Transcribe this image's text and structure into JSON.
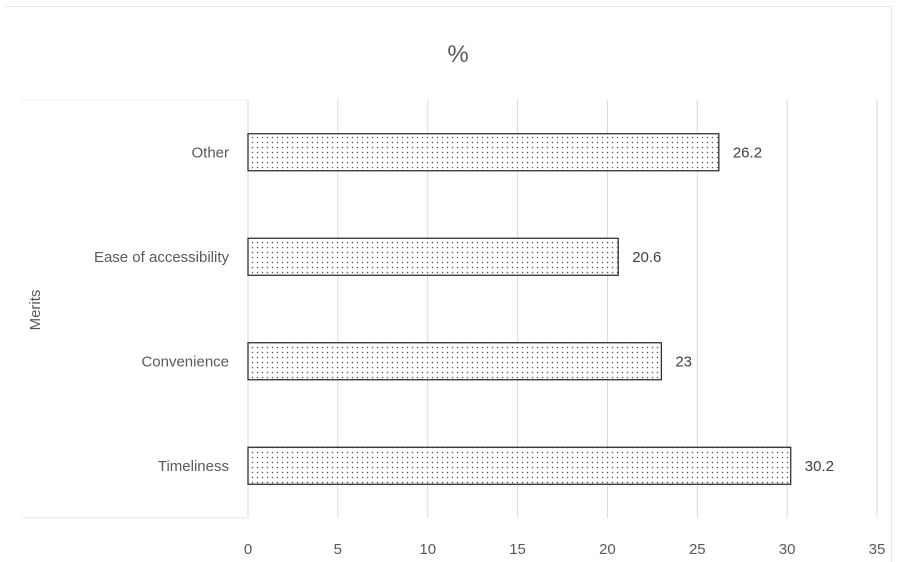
{
  "chart_data": {
    "type": "bar",
    "orientation": "horizontal",
    "title": "%",
    "ylabel": "Merits",
    "xlabel": "",
    "categories": [
      "Timeliness",
      "Convenience",
      "Ease of accessibility",
      "Other"
    ],
    "values": [
      30.2,
      23,
      20.6,
      26.2
    ],
    "data_labels": [
      "30.2",
      "23",
      "20.6",
      "26.2"
    ],
    "xlim": [
      0,
      35
    ],
    "x_ticks": [
      0,
      5,
      10,
      15,
      20,
      25,
      30,
      35
    ],
    "grid": "vertical",
    "legend": "none",
    "bar_fill": "dotted pattern",
    "colors": {
      "bar_border": "#222222",
      "dots": "#555555",
      "grid": "#d9d9d9",
      "text": "#595959"
    }
  }
}
